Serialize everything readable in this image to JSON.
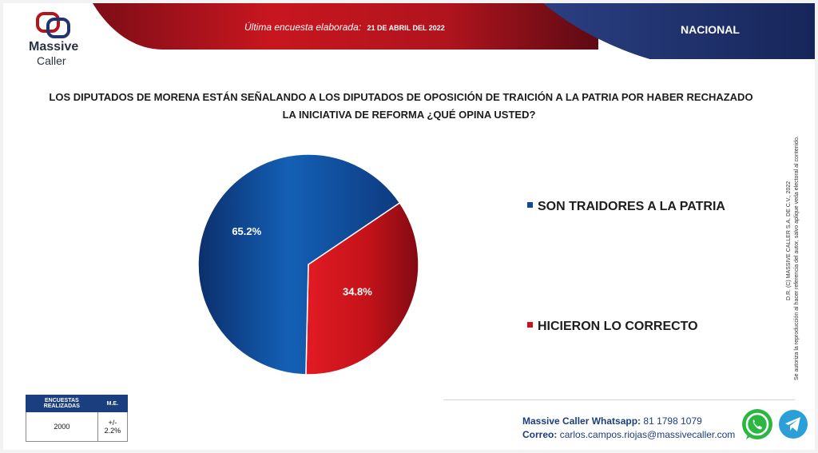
{
  "brand": {
    "name_line1": "Massive",
    "name_line2": "Caller"
  },
  "header": {
    "survey_label": "Última encuesta elaborada:",
    "survey_date": "21 DE ABRIL DEL 2022",
    "scope": "NACIONAL"
  },
  "question": {
    "line1": "LOS DIPUTADOS DE MORENA ESTÁN SEÑALANDO A LOS DIPUTADOS DE OPOSICIÓN DE TRAICIÓN A LA PATRIA POR HABER RECHAZADO",
    "line2": "LA INICIATIVA DE REFORMA ¿QUÉ OPINA USTED?"
  },
  "chart_data": {
    "type": "pie",
    "slices": [
      {
        "label": "SON TRAIDORES A LA PATRIA",
        "value": 65.2,
        "display": "65.2%",
        "color": "#0f4a9a"
      },
      {
        "label": "HICIERON LO CORRECTO",
        "value": 34.8,
        "display": "34.8%",
        "color": "#c9141c"
      }
    ],
    "legend_placement": "right"
  },
  "side_text": {
    "line1": "D.R. (C) MASSIVE CALLER S.A. DE C.V., 2022",
    "line2": "Se autoriza la reproducción al hacer referencia del autor, salvo aplique veda electoral al contenido."
  },
  "sample": {
    "col1_header": "ENCUESTAS REALIZADAS",
    "col2_header": "M.E.",
    "col1_value": "2000",
    "col2_value": "+/- 2.2%"
  },
  "contact": {
    "whatsapp_label": "Massive Caller Whatsapp:",
    "whatsapp_number": "81 1798 1079",
    "email_label": "Correo:",
    "email": "carlos.campos.riojas@massivecaller.com"
  },
  "colors": {
    "header_red": "#b3141e",
    "header_navy": "#1f3470",
    "slice_blue": "#0f4a9a",
    "slice_red": "#c9141c"
  },
  "icons": [
    "whatsapp-icon",
    "telegram-icon"
  ]
}
